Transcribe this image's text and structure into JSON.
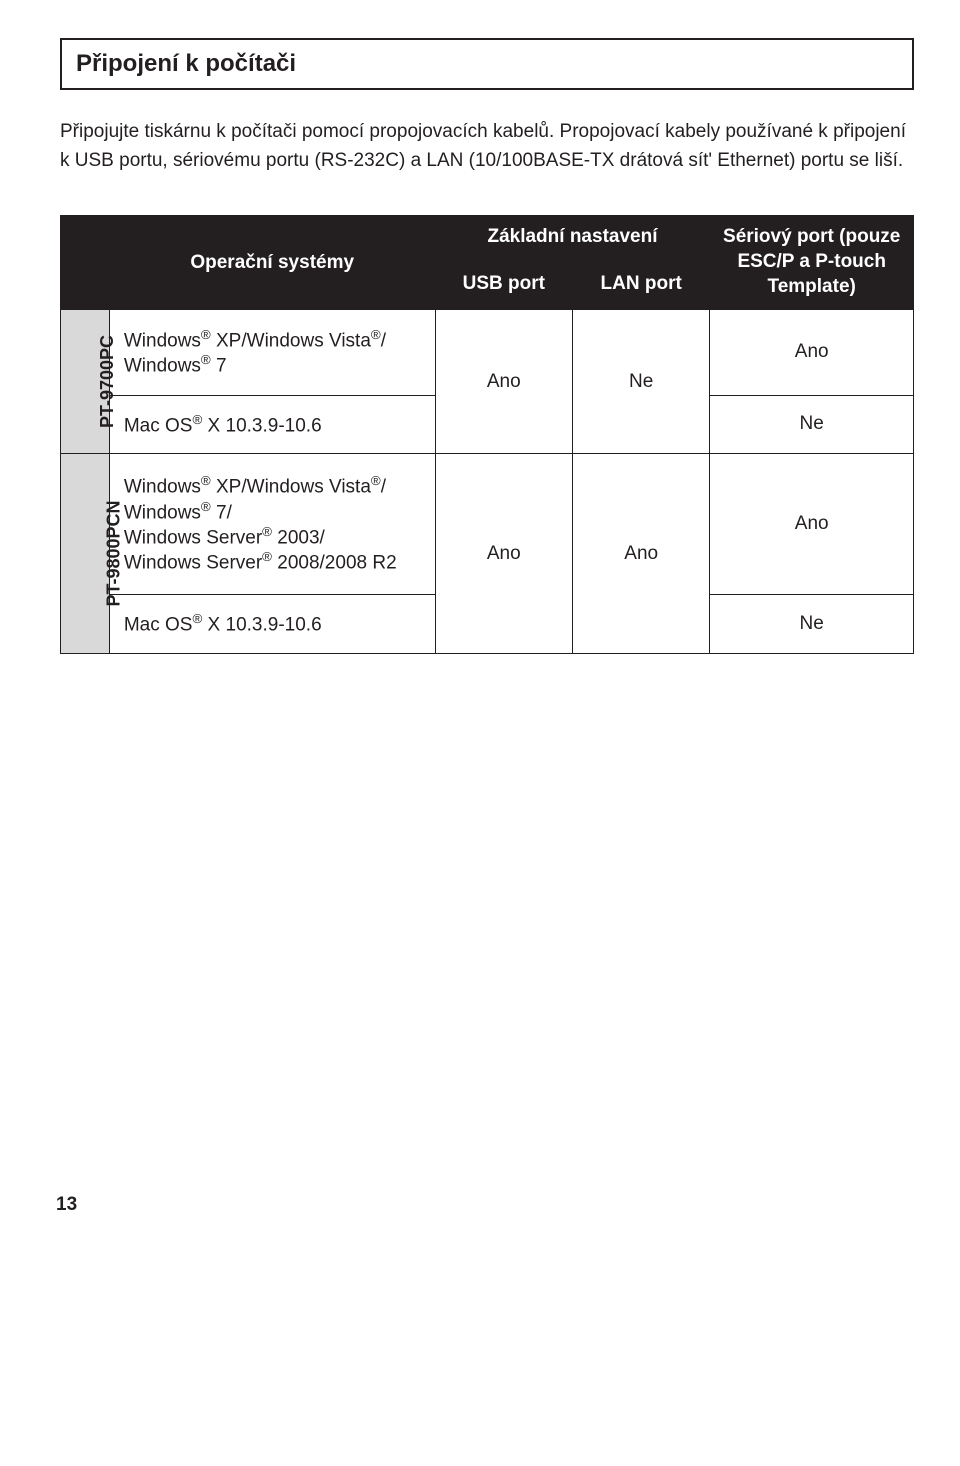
{
  "section": {
    "title": "Připojení k počítači"
  },
  "intro": {
    "text": "Připojujte tiskárnu k počítači pomocí propojovacích kabelů. Propojovací kabely používané k připojení k USB portu, sériovému portu (RS-232C) a LAN (10/100BASE-TX drátová sít' Ethernet) portu se liší."
  },
  "table": {
    "headers": {
      "os": "Operační systémy",
      "basic": "Základní nastavení",
      "usb": "USB port",
      "lan": "LAN port",
      "serial": "Sériový port (pouze ESC/P a P-touch Template)"
    },
    "groups": [
      {
        "model": "PT-9700PC",
        "usb": "Ano",
        "lan": "Ne",
        "rows": [
          {
            "os_html": "Windows<sup>®</sup> XP/Windows Vista<sup>®</sup>/ Windows<sup>®</sup> 7",
            "serial": "Ano"
          },
          {
            "os_html": "Mac OS<sup>®</sup> X 10.3.9-10.6",
            "serial": "Ne"
          }
        ]
      },
      {
        "model": "PT-9800PCN",
        "usb": "Ano",
        "lan": "Ano",
        "rows": [
          {
            "os_html": "Windows<sup>®</sup> XP/Windows Vista<sup>®</sup>/ Windows<sup>®</sup> 7/<br>Windows Server<sup>®</sup> 2003/<br>Windows Server<sup>®</sup> 2008/2008 R2",
            "serial": "Ano"
          },
          {
            "os_html": "Mac OS<sup>®</sup> X 10.3.9-10.6",
            "serial": "Ne"
          }
        ]
      }
    ]
  },
  "page_number": "13",
  "colors": {
    "text": "#231f20",
    "header_bg": "#231f20",
    "header_fg": "#ffffff",
    "model_bg": "#d9d9d9",
    "border": "#231f20",
    "page_bg": "#ffffff"
  }
}
